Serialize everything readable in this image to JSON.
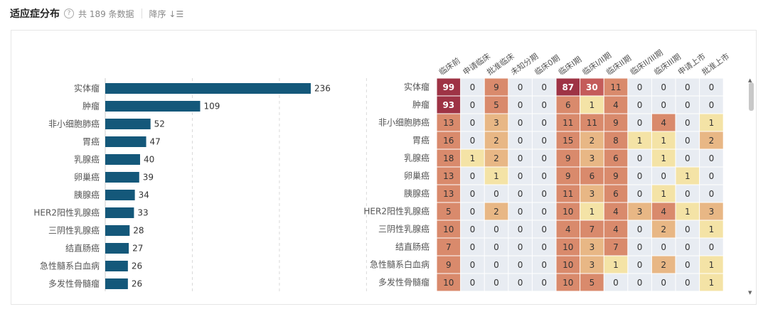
{
  "header": {
    "title": "适应症分布",
    "help_icon": "?",
    "count_text": "共 189 条数据",
    "sort_label": "降序",
    "sort_icon": "sort-desc-icon"
  },
  "colors": {
    "bar": "#14587a",
    "heat_bg": "#e8ecf2",
    "heat_scale": [
      "#f4e3a6",
      "#e8b785",
      "#d98a6c",
      "#c45c5a",
      "#9e3345"
    ]
  },
  "chart_data": [
    {
      "type": "bar",
      "orientation": "horizontal",
      "categories": [
        "实体瘤",
        "肿瘤",
        "非小细胞肺癌",
        "胃癌",
        "乳腺癌",
        "卵巢癌",
        "胰腺癌",
        "HER2阳性乳腺癌",
        "三阴性乳腺癌",
        "结直肠癌",
        "急性髓系白血病",
        "多发性骨髓瘤"
      ],
      "values": [
        236,
        109,
        52,
        47,
        40,
        39,
        34,
        33,
        28,
        27,
        26,
        26
      ],
      "xlim": [
        0,
        400
      ],
      "grid": true
    },
    {
      "type": "heatmap",
      "columns": [
        "临床前",
        "申请临床",
        "批准临床",
        "未知分期",
        "临床0期",
        "临床I期",
        "临床I/II期",
        "临床II期",
        "临床II/III期",
        "临床III期",
        "申请上市",
        "批准上市"
      ],
      "rows": [
        "实体瘤",
        "肿瘤",
        "非小细胞肺癌",
        "胃癌",
        "乳腺癌",
        "卵巢癌",
        "胰腺癌",
        "HER2阳性乳腺癌",
        "三阴性乳腺癌",
        "结直肠癌",
        "急性髓系白血病",
        "多发性骨髓瘤"
      ],
      "values": [
        [
          99,
          0,
          9,
          0,
          0,
          87,
          30,
          11,
          0,
          0,
          0,
          0
        ],
        [
          93,
          0,
          5,
          0,
          0,
          6,
          1,
          4,
          0,
          0,
          0,
          0
        ],
        [
          13,
          0,
          3,
          0,
          0,
          11,
          11,
          9,
          0,
          4,
          0,
          1
        ],
        [
          16,
          0,
          2,
          0,
          0,
          15,
          2,
          8,
          1,
          1,
          0,
          2
        ],
        [
          18,
          1,
          2,
          0,
          0,
          9,
          3,
          6,
          0,
          1,
          0,
          0
        ],
        [
          13,
          0,
          1,
          0,
          0,
          9,
          6,
          9,
          0,
          0,
          1,
          0
        ],
        [
          13,
          0,
          0,
          0,
          0,
          11,
          3,
          6,
          0,
          1,
          0,
          0
        ],
        [
          5,
          0,
          2,
          0,
          0,
          10,
          1,
          4,
          3,
          4,
          1,
          3
        ],
        [
          10,
          0,
          0,
          0,
          0,
          4,
          7,
          4,
          0,
          2,
          0,
          1
        ],
        [
          7,
          0,
          0,
          0,
          0,
          10,
          3,
          7,
          0,
          0,
          0,
          0
        ],
        [
          9,
          0,
          0,
          0,
          0,
          10,
          3,
          1,
          0,
          2,
          0,
          1
        ],
        [
          10,
          0,
          0,
          0,
          0,
          10,
          5,
          0,
          0,
          0,
          0,
          1
        ]
      ]
    }
  ]
}
